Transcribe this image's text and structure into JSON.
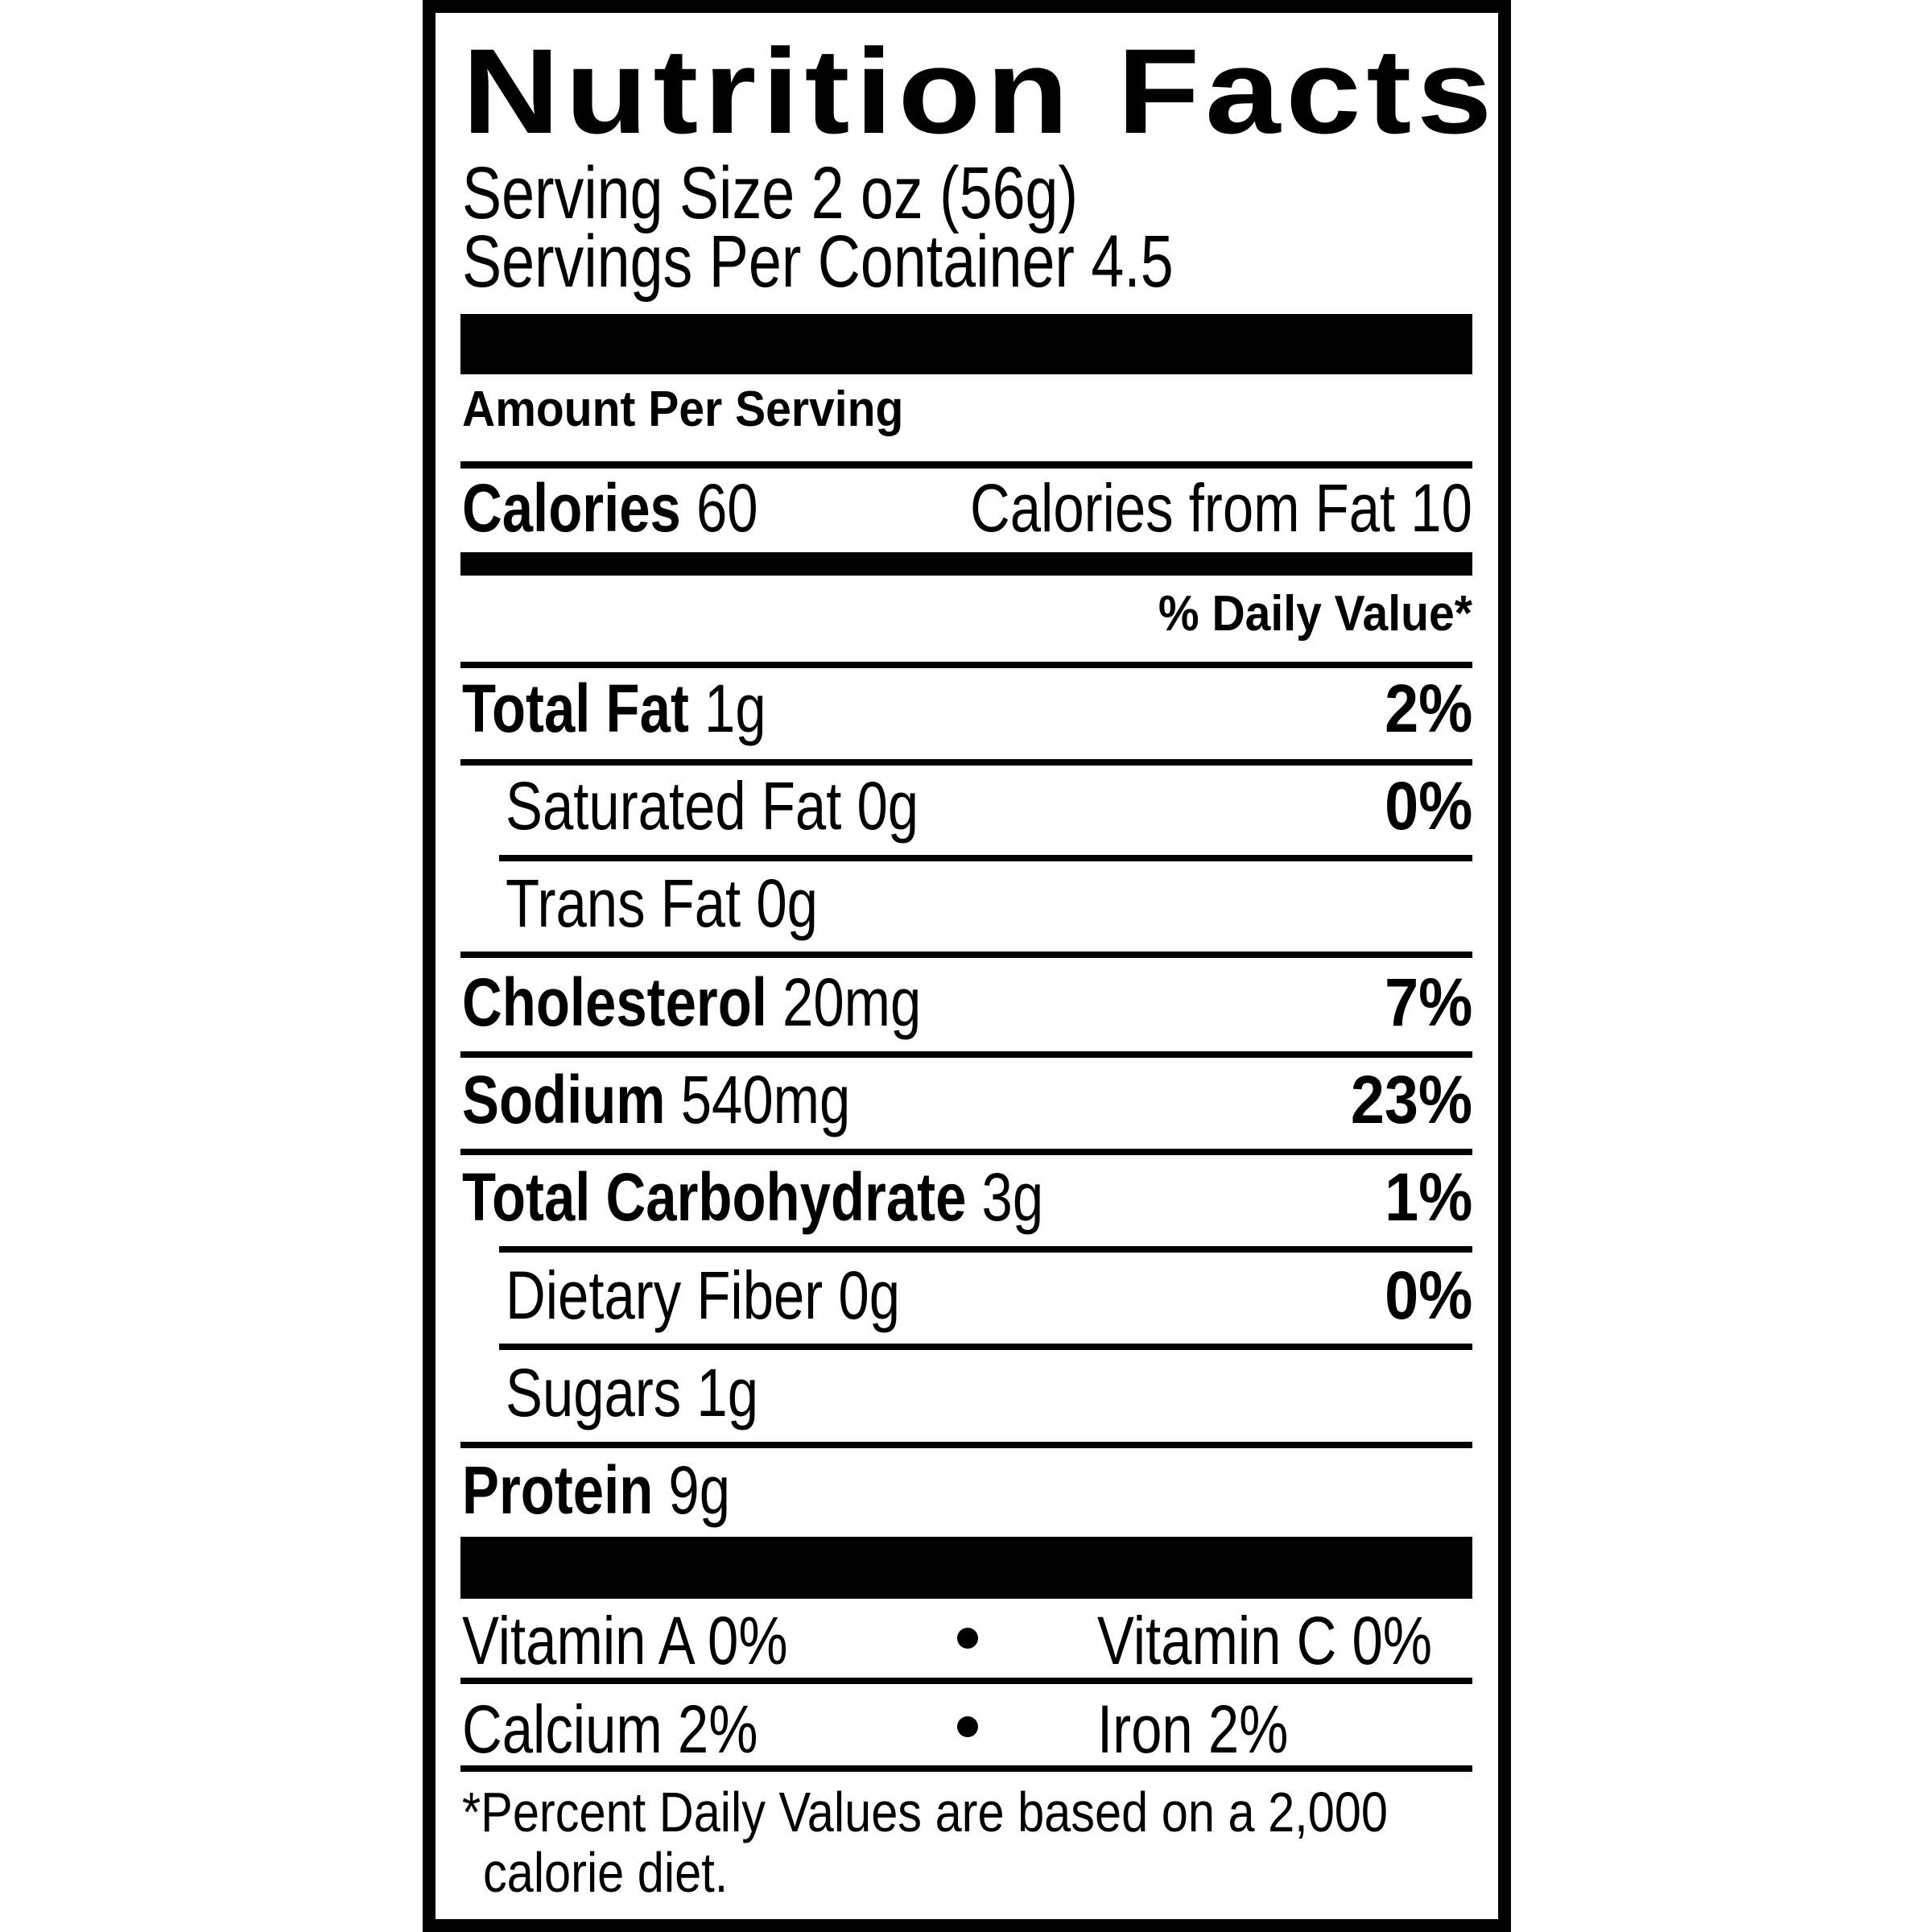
{
  "title": "Nutrition Facts",
  "serving_size": "Serving Size 2 oz (56g)",
  "servings_per_container": "Servings Per Container 4.5",
  "amount_per_serving": "Amount Per Serving",
  "calories": {
    "label": "Calories",
    "value": "60",
    "from_fat": "Calories from Fat 10"
  },
  "daily_value_header": "% Daily Value*",
  "nutrients": [
    {
      "name": "Total Fat",
      "amount": "1g",
      "dv": "2%"
    },
    {
      "name": "Saturated Fat",
      "amount": "0g",
      "dv": "0%"
    },
    {
      "name": "Trans Fat",
      "amount": "0g",
      "dv": ""
    },
    {
      "name": "Cholesterol",
      "amount": "20mg",
      "dv": "7%"
    },
    {
      "name": "Sodium",
      "amount": "540mg",
      "dv": "23%"
    },
    {
      "name": "Total Carbohydrate",
      "amount": "3g",
      "dv": "1%"
    },
    {
      "name": "Dietary Fiber",
      "amount": "0g",
      "dv": "0%"
    },
    {
      "name": "Sugars",
      "amount": "1g",
      "dv": ""
    },
    {
      "name": "Protein",
      "amount": "9g",
      "dv": ""
    }
  ],
  "vitamins": [
    {
      "left": "Vitamin A 0%",
      "right": "Vitamin C 0%"
    },
    {
      "left": "Calcium 2%",
      "right": "Iron 2%"
    }
  ],
  "footnote": [
    "*Percent Daily Values are based on a 2,000",
    "calorie diet."
  ]
}
